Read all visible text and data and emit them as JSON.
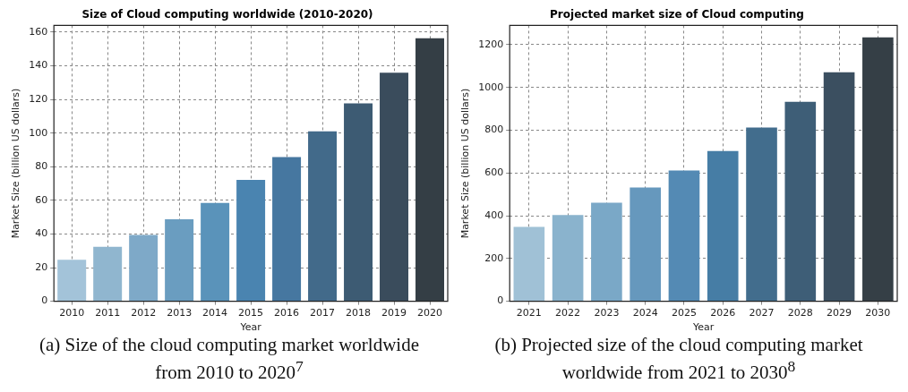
{
  "chart_data": [
    {
      "type": "bar",
      "title": "Size of Cloud computing worldwide (2010-2020)",
      "xlabel": "Year",
      "ylabel": "Market Size (billion US dollars)",
      "categories": [
        "2010",
        "2011",
        "2012",
        "2013",
        "2014",
        "2015",
        "2016",
        "2017",
        "2018",
        "2019",
        "2020"
      ],
      "values": [
        24.6,
        32.4,
        39.4,
        48.7,
        58.5,
        72.2,
        85.7,
        101,
        117.7,
        135.9,
        156.4
      ],
      "colors": [
        "#a3c3d9",
        "#90b6cf",
        "#7ea9c8",
        "#6a9dc0",
        "#5a93ba",
        "#4a84b0",
        "#4677a0",
        "#426a8a",
        "#3d5b73",
        "#3a4c5c",
        "#343e45"
      ],
      "ylim": [
        0,
        164
      ],
      "yticks": [
        0,
        20,
        40,
        60,
        80,
        100,
        120,
        140,
        160
      ],
      "grid": true,
      "annotations": [
        "(a) Size of the cloud computing market worldwide from 2010 to 2020$^{7}$"
      ]
    },
    {
      "type": "bar",
      "title": "Projected market size of Cloud computing",
      "xlabel": "Year",
      "ylabel": "Market Size (billion US dollars)",
      "categories": [
        "2021",
        "2022",
        "2023",
        "2024",
        "2025",
        "2026",
        "2027",
        "2028",
        "2029",
        "2030"
      ],
      "values": [
        348,
        403,
        461,
        532,
        612,
        703,
        812,
        933,
        1071,
        1234
      ],
      "colors": [
        "#a0c1d6",
        "#8ab3cd",
        "#7aa8c7",
        "#6698bd",
        "#548ab4",
        "#467da5",
        "#426d8d",
        "#3e5e77",
        "#3b4f60",
        "#353f46"
      ],
      "ylim": [
        0,
        1290
      ],
      "yticks": [
        0,
        200,
        400,
        600,
        800,
        1000,
        1200
      ],
      "grid": true,
      "annotations": [
        "(b) Projected size of the cloud computing market worldwide from 2021 to 2030$^{8}$"
      ]
    }
  ]
}
